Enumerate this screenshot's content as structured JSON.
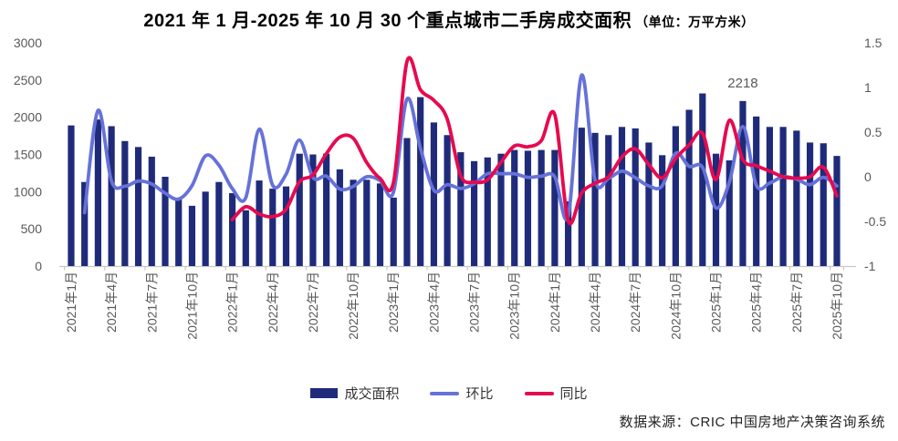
{
  "title": {
    "main": "2021 年 1 月-2025 年 10 月 30 个重点城市二手房成交面积",
    "unit": "（单位：万平方米）"
  },
  "source": "数据来源：CRIC 中国房地产决策咨询系统",
  "legend": [
    {
      "label": "成交面积",
      "type": "bar",
      "color": "#1f2b7a"
    },
    {
      "label": "环比",
      "type": "line",
      "color": "#6672d8"
    },
    {
      "label": "同比",
      "type": "line",
      "color": "#e60a4f"
    }
  ],
  "colors": {
    "bar": "#1f2b7a",
    "mom_line": "#6672d8",
    "yoy_line": "#e60a4f",
    "axis_text": "#595959",
    "axis_line": "#c8c8c8",
    "annotation": "#595959"
  },
  "chart_data": {
    "type": "bar+line combo",
    "title": "2021年1月-2025年10月30个重点城市二手房成交面积",
    "unit": "万平方米",
    "months_count": 58,
    "x_tick_interval": 3,
    "x_tick_labels": [
      "2021年1月",
      "2021年4月",
      "2021年7月",
      "2021年10月",
      "2022年1月",
      "2022年4月",
      "2022年7月",
      "2022年10月",
      "2023年1月",
      "2023年4月",
      "2023年7月",
      "2023年10月",
      "2024年1月",
      "2024年4月",
      "2024年7月",
      "2024年10月",
      "2025年1月",
      "2025年4月",
      "2025年7月",
      "2025年10月"
    ],
    "axes": {
      "left": {
        "min": 0,
        "max": 3000,
        "ticks": [
          0,
          500,
          1000,
          1500,
          2000,
          2500,
          3000
        ]
      },
      "right": {
        "min": -1,
        "max": 1.5,
        "ticks": [
          -1,
          -0.5,
          0,
          0.5,
          1,
          1.5
        ],
        "tick_labels": [
          "-1",
          "-0.5",
          "0",
          "0.5",
          "1",
          "1.5"
        ]
      }
    },
    "annotation": {
      "text": "2218",
      "month_index": 50
    },
    "series": [
      {
        "name": "成交面积",
        "type": "bar",
        "axis": "left",
        "color": "#1f2b7a",
        "values": [
          1890,
          1130,
          1970,
          1880,
          1680,
          1600,
          1470,
          1200,
          900,
          810,
          1000,
          1130,
          980,
          750,
          1150,
          1040,
          1070,
          1510,
          1500,
          1510,
          1300,
          1160,
          1160,
          1110,
          920,
          1720,
          2270,
          1930,
          1760,
          1530,
          1410,
          1460,
          1510,
          1560,
          1550,
          1560,
          1560,
          870,
          1860,
          1790,
          1760,
          1870,
          1850,
          1660,
          1490,
          1880,
          2100,
          2320,
          1510,
          1420,
          2218,
          2010,
          1870,
          1870,
          1820,
          1660,
          1650,
          1480
        ]
      },
      {
        "name": "环比",
        "type": "line",
        "axis": "right",
        "color": "#6672d8",
        "values": [
          null,
          -0.402,
          0.743,
          -0.046,
          -0.106,
          -0.048,
          -0.081,
          -0.184,
          -0.25,
          -0.1,
          0.235,
          0.13,
          -0.133,
          -0.235,
          0.533,
          -0.096,
          0.029,
          0.411,
          -0.007,
          0.007,
          -0.139,
          -0.108,
          0,
          -0.043,
          -0.171,
          0.87,
          0.32,
          -0.15,
          -0.088,
          -0.131,
          -0.078,
          0.035,
          0.034,
          0.033,
          -0.006,
          0.006,
          0,
          -0.442,
          1.138,
          -0.038,
          -0.017,
          0.063,
          -0.011,
          -0.103,
          -0.102,
          0.262,
          0.117,
          0.105,
          -0.349,
          -0.06,
          0.562,
          -0.094,
          -0.07,
          0,
          -0.027,
          -0.088,
          -0.006,
          -0.103
        ]
      },
      {
        "name": "同比",
        "type": "line",
        "axis": "right",
        "color": "#e60a4f",
        "values": [
          null,
          null,
          null,
          null,
          null,
          null,
          null,
          null,
          null,
          null,
          null,
          null,
          -0.481,
          -0.336,
          -0.416,
          -0.447,
          -0.363,
          -0.056,
          0.02,
          0.258,
          0.444,
          0.432,
          0.16,
          -0.018,
          -0.061,
          1.293,
          0.974,
          0.856,
          0.645,
          0.013,
          -0.06,
          -0.033,
          0.162,
          0.345,
          0.336,
          0.405,
          0.696,
          -0.494,
          -0.181,
          -0.073,
          0,
          0.222,
          0.312,
          0.137,
          -0.013,
          0.205,
          0.355,
          0.487,
          -0.032,
          0.632,
          0.192,
          0.123,
          0.063,
          0,
          -0.016,
          0,
          0.107,
          -0.213
        ]
      }
    ]
  }
}
